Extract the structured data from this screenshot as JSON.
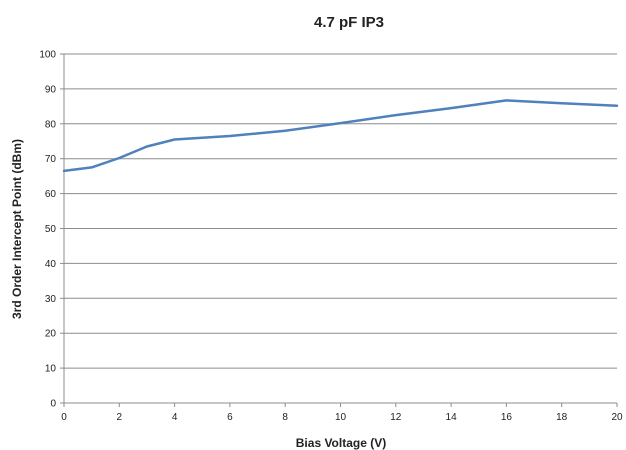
{
  "chart_data": {
    "type": "line",
    "title": "4.7 pF IP3",
    "xlabel": "Bias Voltage (V)",
    "ylabel": "3rd Order Intercept Point (dBm)",
    "xlim": [
      0,
      20
    ],
    "ylim": [
      0,
      100
    ],
    "xticks": [
      0,
      2,
      4,
      6,
      8,
      10,
      12,
      14,
      16,
      18,
      20
    ],
    "yticks": [
      0,
      10,
      20,
      30,
      40,
      50,
      60,
      70,
      80,
      90,
      100
    ],
    "grid": "horizontal",
    "legend": "none",
    "series": [
      {
        "color": "#4F81BD",
        "x": [
          0,
          1,
          2,
          3,
          4,
          6,
          8,
          10,
          12,
          14,
          16,
          18,
          20
        ],
        "y": [
          66.5,
          67.5,
          70.2,
          73.5,
          75.5,
          76.5,
          78.0,
          80.2,
          82.5,
          84.5,
          86.7,
          85.9,
          85.2
        ]
      }
    ]
  }
}
